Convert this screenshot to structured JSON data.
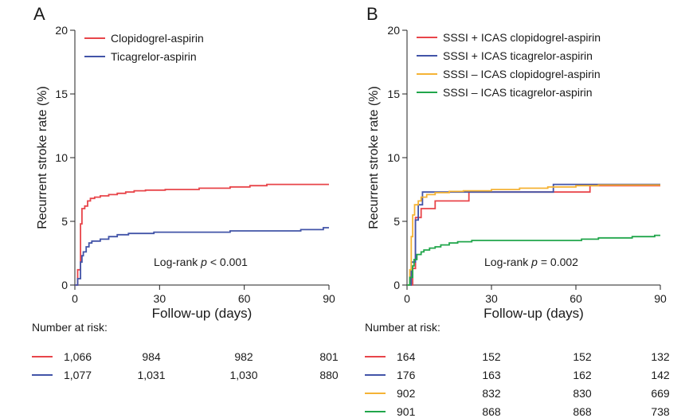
{
  "chart_data": [
    {
      "type": "line",
      "panel": "A",
      "xlabel": "Follow-up (days)",
      "ylabel": "Recurrent stroke rate (%)",
      "xlim": [
        0,
        90
      ],
      "ylim": [
        0,
        20
      ],
      "xticks": [
        "0",
        "30",
        "60",
        "90"
      ],
      "yticks": [
        "0",
        "5",
        "10",
        "15",
        "20"
      ],
      "legend_position": "top-left",
      "annotation": {
        "prefix": "Log-rank ",
        "p": "p",
        "suffix": " < 0.001"
      },
      "risk_title": "Number at risk:",
      "series": [
        {
          "name": "Clopidogrel-aspirin",
          "color": "#e8454a",
          "risk": [
            "1,066",
            "984",
            "982",
            "801"
          ],
          "points": [
            [
              0,
              0
            ],
            [
              1,
              0
            ],
            [
              1,
              1.2
            ],
            [
              2,
              1.2
            ],
            [
              2,
              4.8
            ],
            [
              2.5,
              4.8
            ],
            [
              2.5,
              6.0
            ],
            [
              3.5,
              6.0
            ],
            [
              3.5,
              6.2
            ],
            [
              4.5,
              6.2
            ],
            [
              4.5,
              6.6
            ],
            [
              5.5,
              6.6
            ],
            [
              5.5,
              6.8
            ],
            [
              7,
              6.8
            ],
            [
              7,
              6.9
            ],
            [
              9,
              6.9
            ],
            [
              9,
              7.0
            ],
            [
              12,
              7.0
            ],
            [
              12,
              7.1
            ],
            [
              15,
              7.1
            ],
            [
              15,
              7.2
            ],
            [
              18,
              7.2
            ],
            [
              18,
              7.3
            ],
            [
              21,
              7.3
            ],
            [
              21,
              7.4
            ],
            [
              25,
              7.4
            ],
            [
              25,
              7.45
            ],
            [
              32,
              7.45
            ],
            [
              32,
              7.5
            ],
            [
              44,
              7.5
            ],
            [
              44,
              7.6
            ],
            [
              55,
              7.6
            ],
            [
              55,
              7.7
            ],
            [
              62,
              7.7
            ],
            [
              62,
              7.8
            ],
            [
              68,
              7.8
            ],
            [
              68,
              7.9
            ],
            [
              90,
              7.9
            ]
          ]
        },
        {
          "name": "Ticagrelor-aspirin",
          "color": "#4254a8",
          "risk": [
            "1,077",
            "1,031",
            "1,030",
            "880"
          ],
          "points": [
            [
              0,
              0
            ],
            [
              1,
              0
            ],
            [
              1,
              0.5
            ],
            [
              2,
              0.5
            ],
            [
              2,
              1.8
            ],
            [
              2.5,
              1.8
            ],
            [
              2.5,
              2.3
            ],
            [
              3,
              2.3
            ],
            [
              3,
              2.6
            ],
            [
              4,
              2.6
            ],
            [
              4,
              3.0
            ],
            [
              5,
              3.0
            ],
            [
              5,
              3.3
            ],
            [
              6,
              3.3
            ],
            [
              6,
              3.45
            ],
            [
              9,
              3.45
            ],
            [
              9,
              3.6
            ],
            [
              12,
              3.6
            ],
            [
              12,
              3.8
            ],
            [
              15,
              3.8
            ],
            [
              15,
              3.95
            ],
            [
              19,
              3.95
            ],
            [
              19,
              4.05
            ],
            [
              28,
              4.05
            ],
            [
              28,
              4.15
            ],
            [
              55,
              4.15
            ],
            [
              55,
              4.25
            ],
            [
              80,
              4.25
            ],
            [
              80,
              4.35
            ],
            [
              88,
              4.35
            ],
            [
              88,
              4.5
            ],
            [
              90,
              4.5
            ]
          ]
        }
      ]
    },
    {
      "type": "line",
      "panel": "B",
      "xlabel": "Follow-up (days)",
      "ylabel": "Recurrent stroke rate (%)",
      "xlim": [
        0,
        90
      ],
      "ylim": [
        0,
        20
      ],
      "xticks": [
        "0",
        "30",
        "60",
        "90"
      ],
      "yticks": [
        "0",
        "5",
        "10",
        "15",
        "20"
      ],
      "legend_position": "top-left",
      "annotation": {
        "prefix": "Log-rank ",
        "p": "p",
        "suffix": " = 0.002"
      },
      "risk_title": "Number at risk:",
      "series": [
        {
          "name": "SSSI + ICAS clopidogrel-aspirin",
          "color": "#e8454a",
          "risk": [
            "164",
            "152",
            "152",
            "132"
          ],
          "points": [
            [
              0,
              0
            ],
            [
              2,
              0
            ],
            [
              2,
              1.3
            ],
            [
              3,
              1.3
            ],
            [
              3,
              5.3
            ],
            [
              5,
              5.3
            ],
            [
              5,
              6.0
            ],
            [
              10,
              6.0
            ],
            [
              10,
              6.6
            ],
            [
              22,
              6.6
            ],
            [
              22,
              7.3
            ],
            [
              65,
              7.3
            ],
            [
              65,
              7.8
            ],
            [
              90,
              7.8
            ]
          ]
        },
        {
          "name": "SSSI + ICAS ticagrelor-aspirin",
          "color": "#4254a8",
          "risk": [
            "176",
            "163",
            "162",
            "142"
          ],
          "points": [
            [
              0,
              0
            ],
            [
              1.5,
              0
            ],
            [
              1.5,
              1.8
            ],
            [
              3,
              1.8
            ],
            [
              3,
              5.1
            ],
            [
              4,
              5.1
            ],
            [
              4,
              6.3
            ],
            [
              5.5,
              6.3
            ],
            [
              5.5,
              7.3
            ],
            [
              52,
              7.3
            ],
            [
              52,
              7.9
            ],
            [
              90,
              7.9
            ]
          ]
        },
        {
          "name": "SSSI – ICAS clopidogrel-aspirin",
          "color": "#f5b335",
          "risk": [
            "902",
            "832",
            "830",
            "669"
          ],
          "points": [
            [
              0,
              0
            ],
            [
              1,
              0
            ],
            [
              1,
              1.2
            ],
            [
              1.5,
              1.2
            ],
            [
              1.5,
              3.8
            ],
            [
              2,
              3.8
            ],
            [
              2,
              5.5
            ],
            [
              2.7,
              5.5
            ],
            [
              2.7,
              6.3
            ],
            [
              4,
              6.3
            ],
            [
              4,
              6.6
            ],
            [
              5,
              6.6
            ],
            [
              5,
              6.9
            ],
            [
              7,
              6.9
            ],
            [
              7,
              7.1
            ],
            [
              10,
              7.1
            ],
            [
              10,
              7.25
            ],
            [
              15,
              7.25
            ],
            [
              15,
              7.35
            ],
            [
              20,
              7.35
            ],
            [
              20,
              7.4
            ],
            [
              30,
              7.4
            ],
            [
              30,
              7.5
            ],
            [
              40,
              7.5
            ],
            [
              40,
              7.6
            ],
            [
              50,
              7.6
            ],
            [
              50,
              7.7
            ],
            [
              60,
              7.7
            ],
            [
              60,
              7.8
            ],
            [
              68,
              7.8
            ],
            [
              68,
              7.85
            ],
            [
              90,
              7.85
            ]
          ]
        },
        {
          "name": "SSSI – ICAS ticagrelor-aspirin",
          "color": "#21a64b",
          "risk": [
            "901",
            "868",
            "868",
            "738"
          ],
          "points": [
            [
              0,
              0
            ],
            [
              1,
              0
            ],
            [
              1,
              0.6
            ],
            [
              2,
              0.6
            ],
            [
              2,
              1.5
            ],
            [
              2.5,
              1.5
            ],
            [
              2.5,
              2.0
            ],
            [
              3.5,
              2.0
            ],
            [
              3.5,
              2.4
            ],
            [
              5,
              2.4
            ],
            [
              5,
              2.6
            ],
            [
              6,
              2.6
            ],
            [
              6,
              2.75
            ],
            [
              8,
              2.75
            ],
            [
              8,
              2.9
            ],
            [
              10,
              2.9
            ],
            [
              10,
              3.0
            ],
            [
              12,
              3.0
            ],
            [
              12,
              3.15
            ],
            [
              15,
              3.15
            ],
            [
              15,
              3.3
            ],
            [
              18,
              3.3
            ],
            [
              18,
              3.4
            ],
            [
              23,
              3.4
            ],
            [
              23,
              3.5
            ],
            [
              62,
              3.5
            ],
            [
              62,
              3.6
            ],
            [
              68,
              3.6
            ],
            [
              68,
              3.7
            ],
            [
              80,
              3.7
            ],
            [
              80,
              3.8
            ],
            [
              88,
              3.8
            ],
            [
              88,
              3.9
            ],
            [
              90,
              3.9
            ]
          ]
        }
      ]
    }
  ]
}
